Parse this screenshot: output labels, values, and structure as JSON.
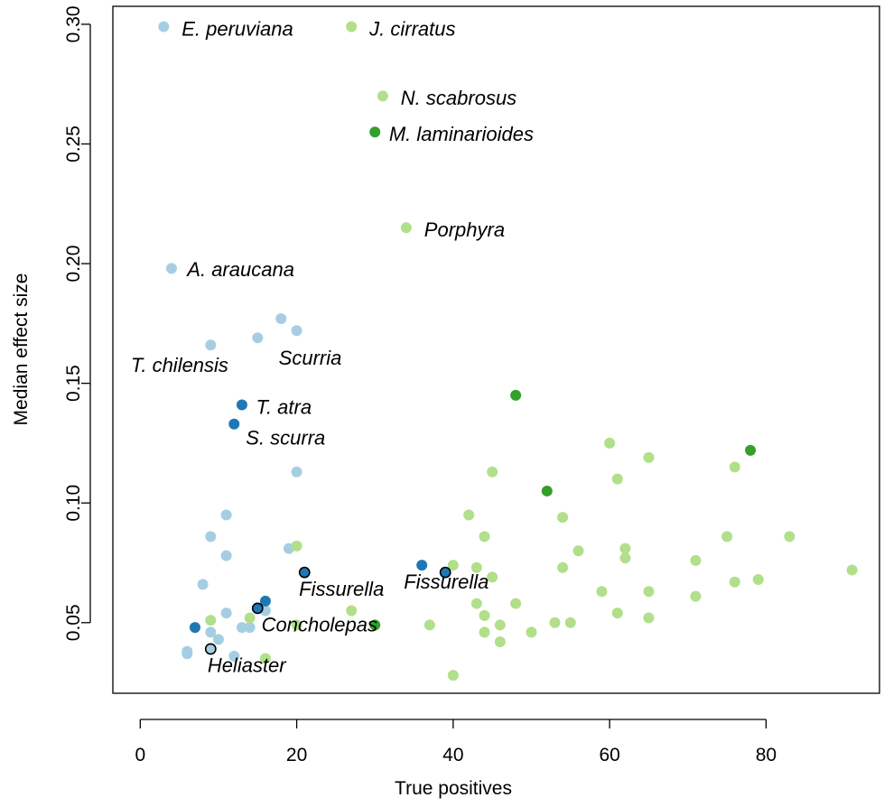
{
  "chart_data": {
    "type": "scatter",
    "xlabel": "True positives",
    "ylabel": "Median effect size",
    "xlim": [
      -3.5,
      94.5
    ],
    "ylim": [
      0.0205,
      0.3075
    ],
    "xticks": [
      0,
      20,
      40,
      60,
      80
    ],
    "yticks": [
      0.05,
      0.1,
      0.15,
      0.2,
      0.25,
      0.3
    ],
    "ytick_labels": [
      "0.05",
      "0.10",
      "0.15",
      "0.20",
      "0.25",
      "0.30"
    ],
    "grid": false,
    "colors": {
      "light_blue": "#a6cee3",
      "dark_blue": "#1f78b4",
      "light_green": "#b2df8a",
      "dark_green": "#33a02c"
    },
    "series": [
      {
        "color_key": "light_blue",
        "points": [
          [
            3,
            0.299
          ],
          [
            4,
            0.198
          ],
          [
            18,
            0.177
          ],
          [
            20,
            0.172
          ],
          [
            15,
            0.169
          ],
          [
            9,
            0.166
          ],
          [
            20,
            0.113
          ],
          [
            11,
            0.095
          ],
          [
            9,
            0.086
          ],
          [
            11,
            0.078
          ],
          [
            19,
            0.081
          ],
          [
            8,
            0.066
          ],
          [
            11,
            0.054
          ],
          [
            16,
            0.055
          ],
          [
            13,
            0.048
          ],
          [
            14,
            0.048
          ],
          [
            9,
            0.046
          ],
          [
            10,
            0.043
          ],
          [
            6,
            0.038
          ],
          [
            6,
            0.037
          ],
          [
            12,
            0.036
          ]
        ]
      },
      {
        "color_key": "dark_blue",
        "points": [
          [
            13,
            0.141
          ],
          [
            12,
            0.133
          ],
          [
            16,
            0.059
          ],
          [
            7,
            0.048
          ],
          [
            36,
            0.074
          ]
        ]
      },
      {
        "color_key": "light_green",
        "points": [
          [
            27,
            0.299
          ],
          [
            31,
            0.27
          ],
          [
            34,
            0.215
          ],
          [
            45,
            0.113
          ],
          [
            60,
            0.125
          ],
          [
            65,
            0.119
          ],
          [
            76,
            0.115
          ],
          [
            61,
            0.11
          ],
          [
            42,
            0.095
          ],
          [
            54,
            0.094
          ],
          [
            44,
            0.086
          ],
          [
            75,
            0.086
          ],
          [
            83,
            0.086
          ],
          [
            56,
            0.08
          ],
          [
            62,
            0.081
          ],
          [
            62,
            0.077
          ],
          [
            71,
            0.076
          ],
          [
            40,
            0.074
          ],
          [
            43,
            0.073
          ],
          [
            54,
            0.073
          ],
          [
            91,
            0.072
          ],
          [
            45,
            0.069
          ],
          [
            79,
            0.068
          ],
          [
            76,
            0.067
          ],
          [
            59,
            0.063
          ],
          [
            65,
            0.063
          ],
          [
            71,
            0.061
          ],
          [
            43,
            0.058
          ],
          [
            48,
            0.058
          ],
          [
            27,
            0.055
          ],
          [
            61,
            0.054
          ],
          [
            44,
            0.053
          ],
          [
            65,
            0.052
          ],
          [
            14,
            0.052
          ],
          [
            9,
            0.051
          ],
          [
            53,
            0.05
          ],
          [
            55,
            0.05
          ],
          [
            37,
            0.049
          ],
          [
            46,
            0.049
          ],
          [
            20,
            0.049
          ],
          [
            44,
            0.046
          ],
          [
            50,
            0.046
          ],
          [
            46,
            0.042
          ],
          [
            16,
            0.035
          ],
          [
            40,
            0.028
          ],
          [
            20,
            0.082
          ]
        ]
      },
      {
        "color_key": "dark_green",
        "points": [
          [
            30,
            0.255
          ],
          [
            48,
            0.145
          ],
          [
            78,
            0.122
          ],
          [
            52,
            0.105
          ],
          [
            30,
            0.049
          ]
        ]
      },
      {
        "color_key": "dark_blue",
        "outlined": true,
        "points": [
          [
            21,
            0.071
          ],
          [
            39,
            0.071
          ],
          [
            15,
            0.056
          ]
        ]
      },
      {
        "color_key": "light_blue",
        "outlined": true,
        "points": [
          [
            9,
            0.039
          ]
        ]
      }
    ],
    "annotations": [
      {
        "text": "E. peruviana",
        "x": 5.3,
        "y": 0.2975
      },
      {
        "text": "J. cirratus",
        "x": 29.3,
        "y": 0.2975
      },
      {
        "text": "N. scabrosus",
        "x": 33.3,
        "y": 0.2685
      },
      {
        "text": "M. laminarioides",
        "x": 31.8,
        "y": 0.2535
      },
      {
        "text": "Porphyra",
        "x": 36.3,
        "y": 0.2135
      },
      {
        "text": "A. araucana",
        "x": 6.0,
        "y": 0.197
      },
      {
        "text": "T. chilensis",
        "x": -1.2,
        "y": 0.157
      },
      {
        "text": "Scurria",
        "x": 17.7,
        "y": 0.16
      },
      {
        "text": "T. atra",
        "x": 14.8,
        "y": 0.1395
      },
      {
        "text": "S. scurra",
        "x": 13.5,
        "y": 0.1265
      },
      {
        "text": "Fissurella",
        "x": 20.3,
        "y": 0.0635
      },
      {
        "text": "Fissurella",
        "x": 33.7,
        "y": 0.0665
      },
      {
        "text": "Concholepas",
        "x": 15.5,
        "y": 0.0485
      },
      {
        "text": "Heliaster",
        "x": 8.6,
        "y": 0.0315
      }
    ]
  }
}
